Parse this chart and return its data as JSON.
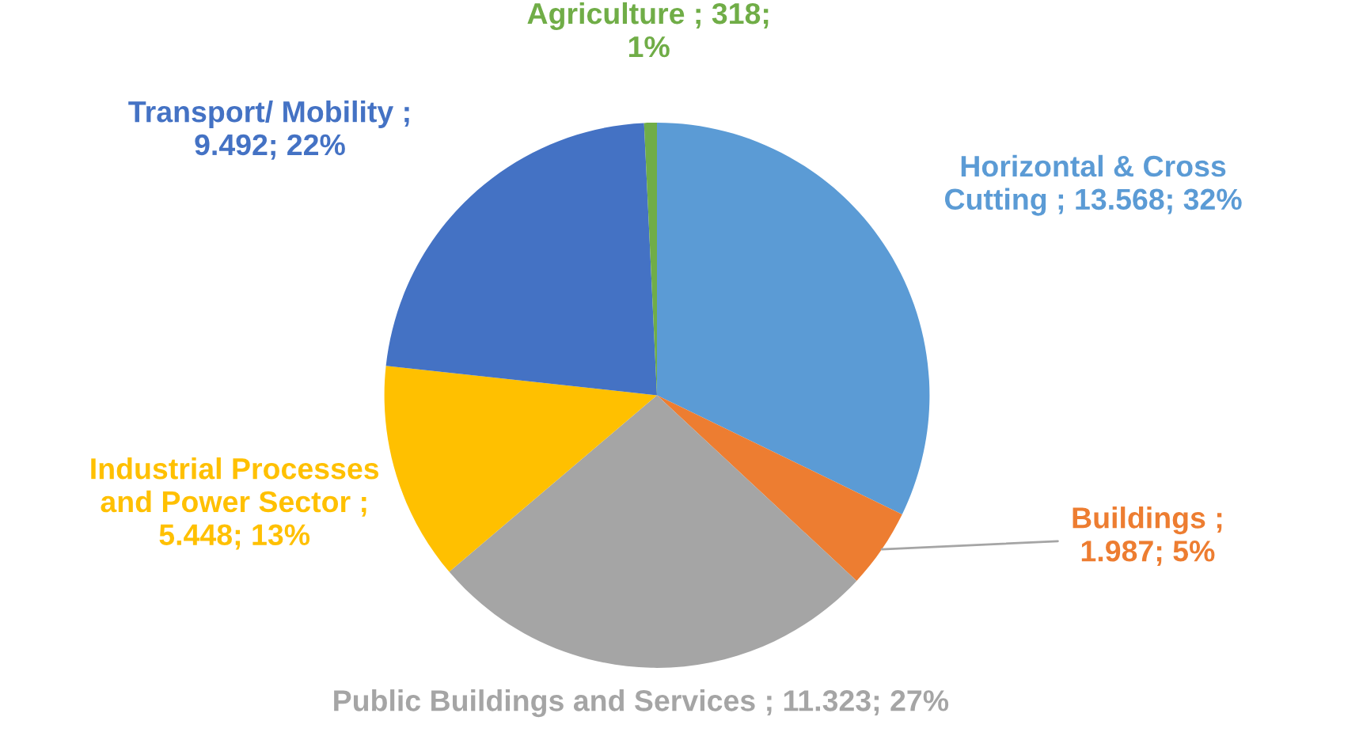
{
  "chart_data": {
    "type": "pie",
    "categories": [
      "Horizontal & Cross Cutting",
      "Buildings",
      "Public Buildings and Services",
      "Industrial Processes and Power Sector",
      "Transport/ Mobility",
      "Agriculture"
    ],
    "values": [
      13568,
      1987,
      11323,
      5448,
      9492,
      318
    ],
    "value_labels": [
      "; 13.568; 32%",
      "; 1.987; 5%",
      "; 11.323; 27%",
      "; 5.448; 13%",
      "; 9.492; 22%",
      "; 318; 1%"
    ],
    "colors": [
      "#5b9bd5",
      "#ed7d31",
      "#a5a5a5",
      "#ffc000",
      "#4472c4",
      "#70ad47"
    ],
    "legend": false
  }
}
